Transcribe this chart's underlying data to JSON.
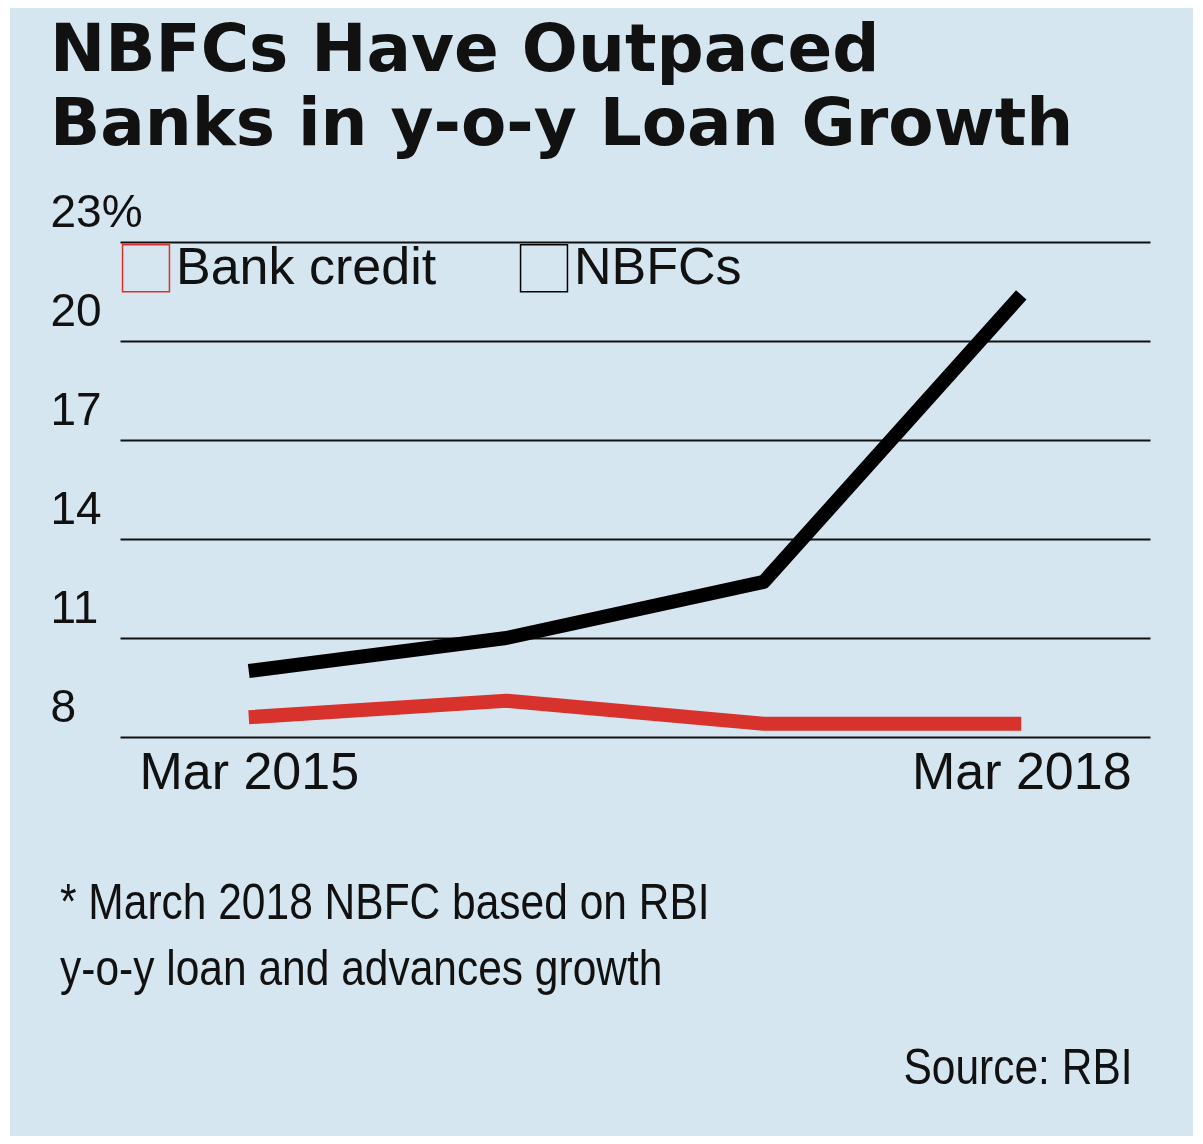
{
  "chart_data": {
    "type": "line",
    "title": [
      "NBFCs Have Outpaced",
      "Banks in y-o-y Loan Growth"
    ],
    "categories": [
      "Mar 2015",
      null,
      null,
      "Mar 2018"
    ],
    "series": [
      {
        "name": "Bank credit",
        "color": "#d7332c",
        "values": [
          8.6,
          9.1,
          8.4,
          8.4
        ]
      },
      {
        "name": "NBFCs",
        "color": "#000000",
        "values": [
          10.0,
          11.0,
          12.7,
          21.4
        ]
      }
    ],
    "ylim": [
      8,
      23
    ],
    "yticks": [
      8,
      11,
      14,
      17,
      20,
      {
        "value": 23,
        "label": "23%"
      }
    ],
    "grid": "y",
    "legend": "top left",
    "marker": "none",
    "line_style": "solid",
    "annotations": [
      "* March 2018 NBFC based on RBI",
      "y-o-y loan and advances growth",
      "Source: RBI"
    ]
  }
}
